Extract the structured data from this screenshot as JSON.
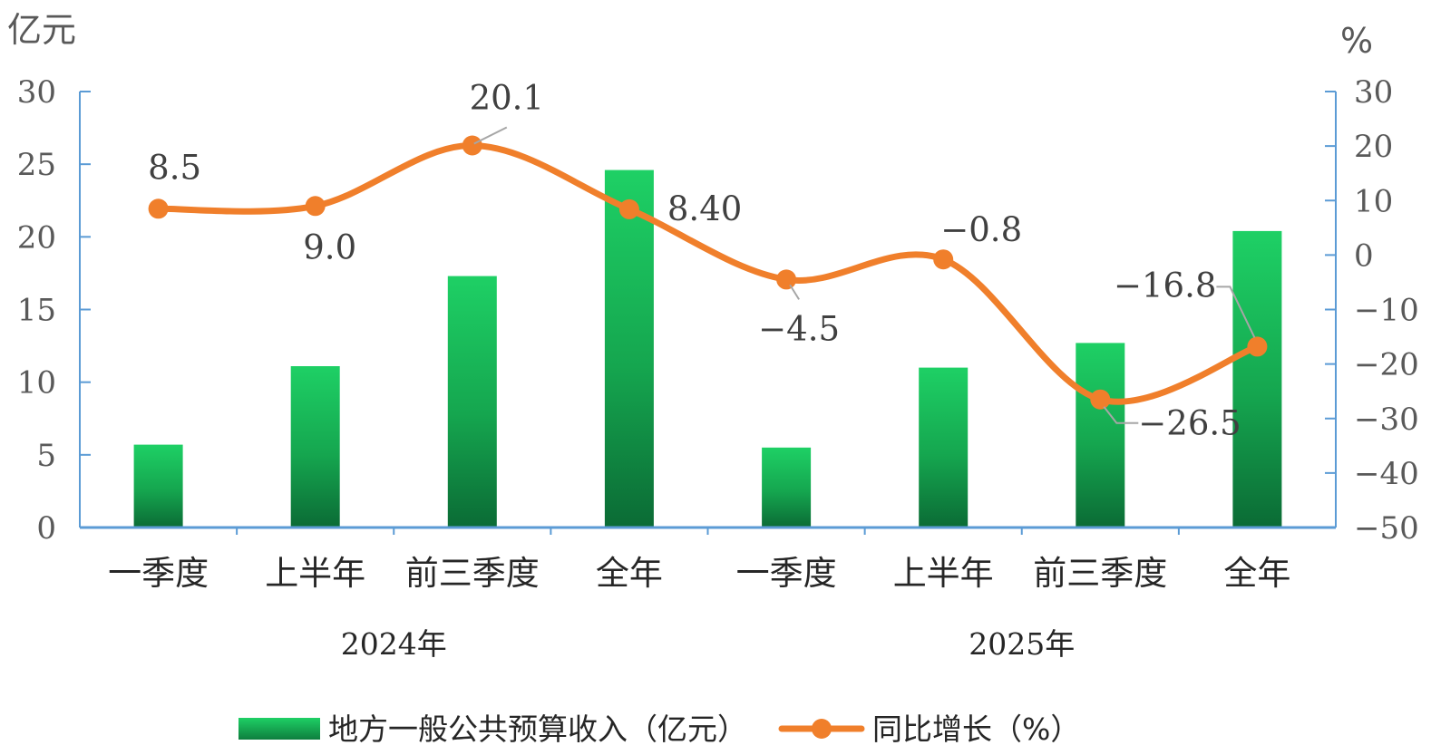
{
  "chart_data": {
    "type": "bar",
    "left_axis_unit": "亿元",
    "right_axis_unit": "%",
    "categories": [
      "一季度",
      "上半年",
      "前三季度",
      "全年",
      "一季度",
      "上半年",
      "前三季度",
      "全年"
    ],
    "year_groups": [
      {
        "label": "2024年",
        "categories": 4
      },
      {
        "label": "2025年",
        "categories": 4
      }
    ],
    "ylim_left": [
      0,
      30
    ],
    "ylim_right": [
      -50,
      30
    ],
    "left_ticks": [
      "0",
      "5",
      "10",
      "15",
      "20",
      "25",
      "30"
    ],
    "right_ticks": [
      "-50",
      "-40",
      "-30",
      "-20",
      "-10",
      "0",
      "10",
      "20",
      "30"
    ],
    "series": [
      {
        "name": "地方一般公共预算收入（亿元）",
        "kind": "bar",
        "axis": "left",
        "color": "#1bc45f",
        "values": [
          5.7,
          11.1,
          17.3,
          24.6,
          5.5,
          11.0,
          12.7,
          20.4
        ]
      },
      {
        "name": "同比增长（%）",
        "kind": "line",
        "axis": "right",
        "color": "#f07f2b",
        "values": [
          8.5,
          9.0,
          20.1,
          8.4,
          -4.5,
          -0.8,
          -26.5,
          -16.8
        ],
        "labels": [
          "8.5",
          "9.0",
          "20.1",
          "8.40",
          "-4.5",
          "-0.8",
          "-26.5",
          "-16.8"
        ]
      }
    ],
    "legend_position": "bottom",
    "grid": false
  }
}
